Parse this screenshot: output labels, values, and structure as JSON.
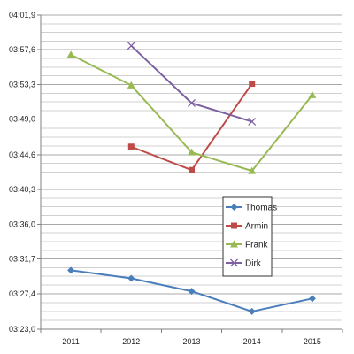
{
  "chart_data": {
    "type": "line",
    "title": "",
    "xlabel": "",
    "ylabel": "",
    "categories": [
      "2011",
      "2012",
      "2013",
      "2014",
      "2015"
    ],
    "y_tick_labels": [
      "03:23,0",
      "03:27,4",
      "03:31,7",
      "03:36,0",
      "03:40,3",
      "03:44,6",
      "03:49,0",
      "03:53,3",
      "03:57,6",
      "04:01,9"
    ],
    "y_axis_unit": "minutes:seconds,tenths",
    "y_axis_seconds": [
      203.0,
      207.4,
      211.7,
      216.0,
      220.3,
      224.6,
      229.0,
      233.3,
      237.6,
      241.9
    ],
    "grid": true,
    "minor_grid_per_major": 4,
    "legend_position": "right-middle",
    "series": [
      {
        "name": "Thomas",
        "color": "#4A7EBB",
        "marker": "diamond",
        "values": [
          210.3,
          209.3,
          207.7,
          205.2,
          206.8
        ]
      },
      {
        "name": "Armin",
        "color": "#BE4B48",
        "marker": "square",
        "values": [
          null,
          225.6,
          222.7,
          233.4,
          null
        ]
      },
      {
        "name": "Frank",
        "color": "#98B954",
        "marker": "triangle",
        "values": [
          237.0,
          233.2,
          224.9,
          222.6,
          232.0
        ]
      },
      {
        "name": "Dirk",
        "color": "#7D60A0",
        "marker": "x",
        "values": [
          null,
          238.1,
          231.0,
          228.7,
          null
        ]
      }
    ]
  }
}
